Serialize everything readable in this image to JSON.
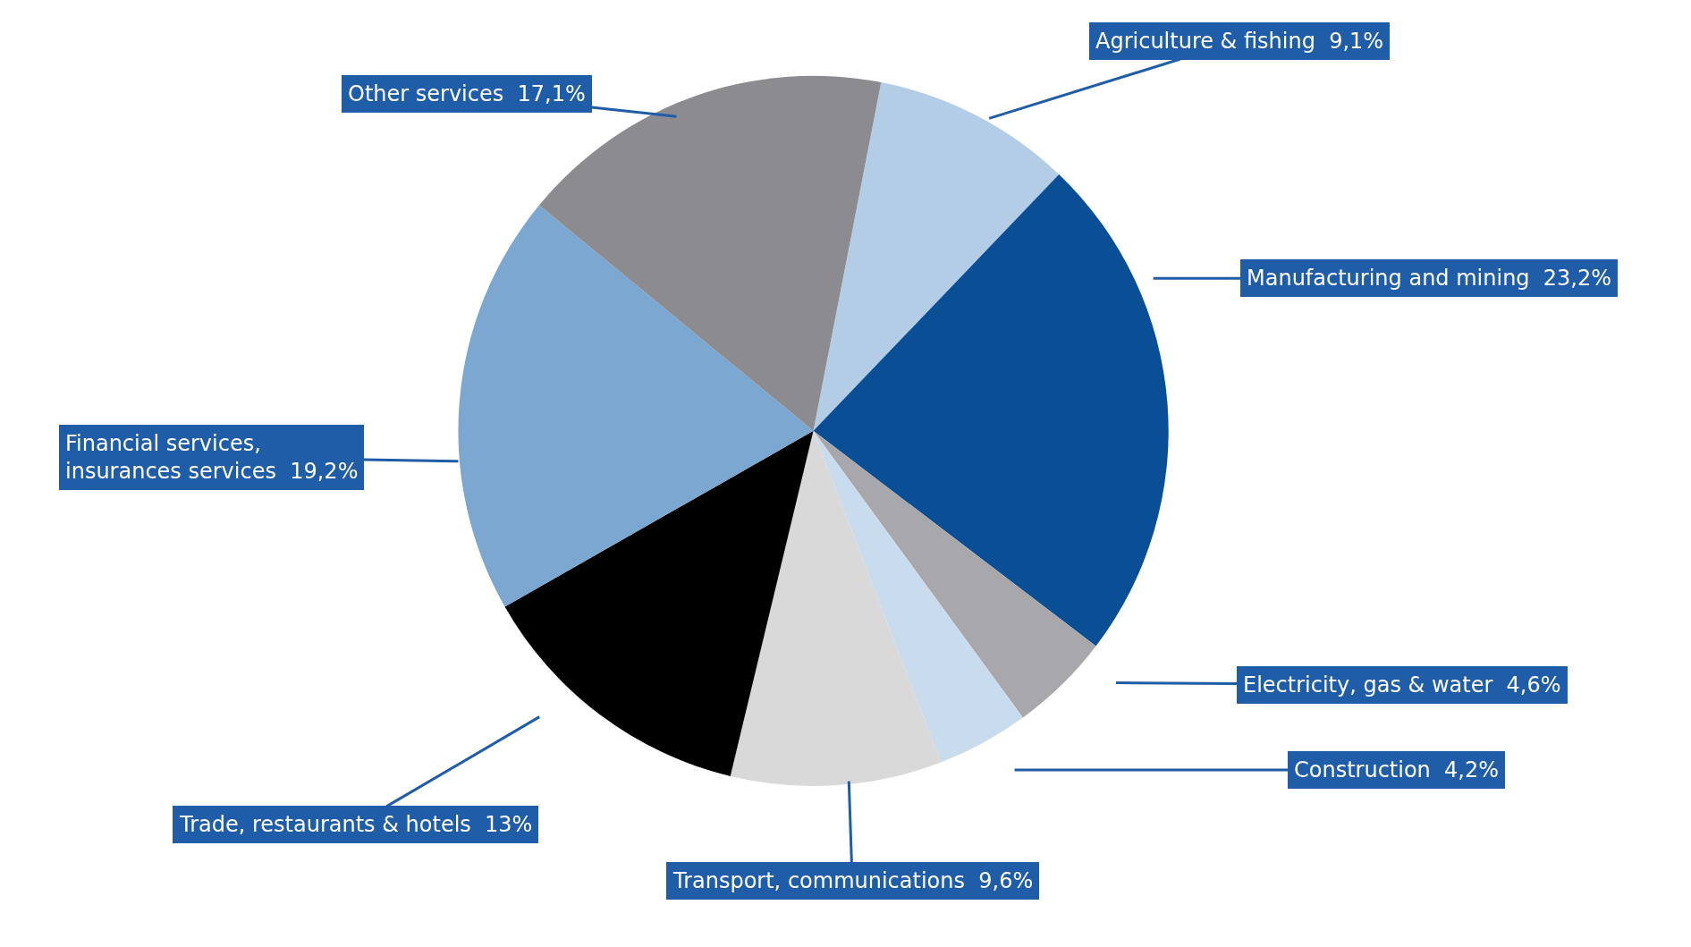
{
  "chart_data": {
    "type": "pie",
    "categories": [
      "Agriculture & fishing",
      "Manufacturing and mining",
      "Electricity, gas & water",
      "Construction",
      "Transport, communications",
      "Trade, restaurants & hotels",
      "Financial services, insurances services",
      "Other services"
    ],
    "values": [
      9.1,
      23.2,
      4.6,
      4.2,
      9.6,
      13,
      19.2,
      17.1
    ],
    "value_labels": [
      "9,1%",
      "23,2%",
      "4,6%",
      "4,2%",
      "9,6%",
      "13%",
      "19,2%",
      "17,1%"
    ],
    "colors": [
      "#b3cde6",
      "#0a4f96",
      "#a8a8ac",
      "#c8dcee",
      "#d9d9d9",
      "#000000",
      "#7ba7d0",
      "#8c8c90"
    ],
    "legend": false
  }
}
